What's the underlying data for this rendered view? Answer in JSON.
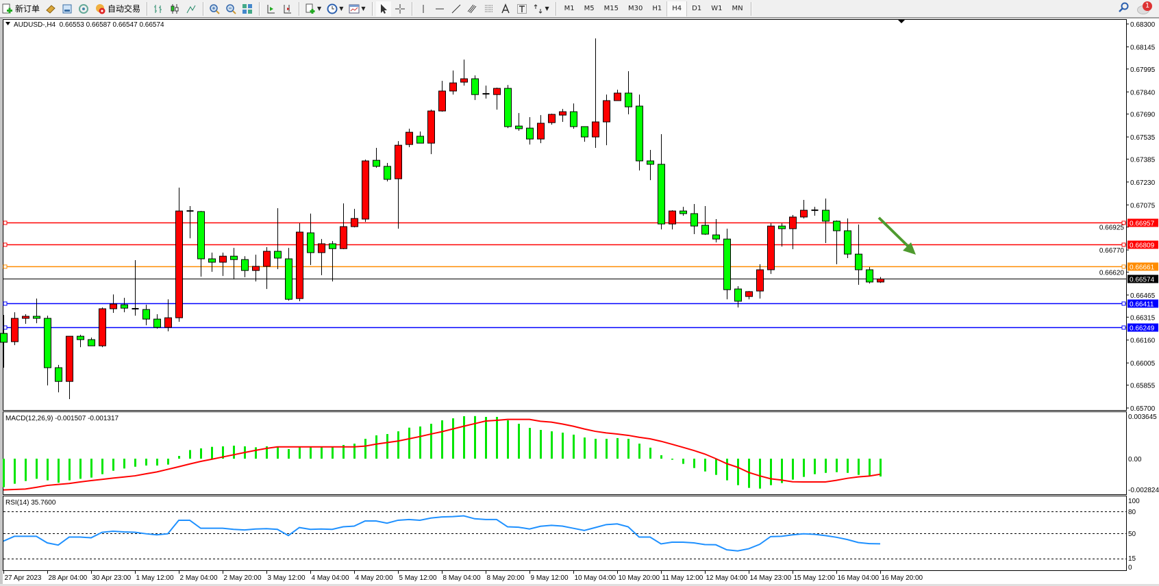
{
  "toolbar": {
    "new_order_label": "新订单",
    "auto_trade_label": "自动交易",
    "timeframes": [
      "M1",
      "M5",
      "M15",
      "M30",
      "H1",
      "H4",
      "D1",
      "W1",
      "MN"
    ],
    "active_timeframe": "H4",
    "notification_count": "1"
  },
  "chart": {
    "symbol_header": "AUDUSD-,H4  0.66553 0.66587 0.66547 0.66574",
    "macd_header": "MACD(12,26,9) -0.001507 -0.001317",
    "rsi_header": "RSI(14) 35.7600",
    "up_color": "#ff0000",
    "down_color": "#00ff00",
    "price_axis_labels": [
      "0.68300",
      "0.68145",
      "0.67995",
      "0.67840",
      "0.67690",
      "0.67535",
      "0.67385",
      "0.67230",
      "0.67075",
      "0.66925",
      "0.66770",
      "0.66620",
      "0.66465",
      "0.66315",
      "0.66160",
      "0.66005",
      "0.65855",
      "0.65700"
    ],
    "horizontal_lines": [
      {
        "price": "0.66957",
        "color": "#ff0000"
      },
      {
        "price": "0.66809",
        "color": "#ff0000"
      },
      {
        "price": "0.66661",
        "color": "#ff8c00"
      },
      {
        "price": "0.66411",
        "color": "#0000ff"
      },
      {
        "price": "0.66249",
        "color": "#0000ff"
      }
    ],
    "current_price": "0.66574",
    "macd_axis_labels": [
      "0.003645",
      "0.00",
      "-0.002824"
    ],
    "rsi_axis_labels": [
      "100",
      "80",
      "50",
      "15",
      "0"
    ],
    "rsi_levels": [
      80,
      50,
      15
    ],
    "time_labels": [
      "27 Apr 2023",
      "28 Apr 04:00",
      "30 Apr 23:00",
      "1 May 12:00",
      "2 May 04:00",
      "2 May 20:00",
      "3 May 12:00",
      "4 May 04:00",
      "4 May 20:00",
      "5 May 12:00",
      "8 May 04:00",
      "8 May 20:00",
      "9 May 12:00",
      "10 May 04:00",
      "10 May 20:00",
      "11 May 12:00",
      "12 May 04:00",
      "14 May 23:00",
      "15 May 12:00",
      "16 May 04:00",
      "16 May 20:00"
    ],
    "arrow_color": "#4e9a2e",
    "arrow_direction": "down-right"
  },
  "chart_data": [
    {
      "type": "candlestick",
      "title": "AUDUSD-,H4",
      "ylim": [
        0.657,
        0.683
      ],
      "ohlc": [
        [
          0.66205,
          0.6633,
          0.65973,
          0.66145
        ],
        [
          0.66149,
          0.66348,
          0.66126,
          0.66307
        ],
        [
          0.66307,
          0.66335,
          0.6627,
          0.66321
        ],
        [
          0.66321,
          0.66441,
          0.66274,
          0.66307
        ],
        [
          0.66307,
          0.66325,
          0.65853,
          0.65973
        ],
        [
          0.65973,
          0.65992,
          0.65806,
          0.6588
        ],
        [
          0.6588,
          0.66186,
          0.6576,
          0.66186
        ],
        [
          0.66186,
          0.66196,
          0.66112,
          0.66163
        ],
        [
          0.66163,
          0.66177,
          0.66121,
          0.66121
        ],
        [
          0.66121,
          0.66381,
          0.66112,
          0.66372
        ],
        [
          0.66372,
          0.66469,
          0.66344,
          0.66404
        ],
        [
          0.66399,
          0.66446,
          0.66348,
          0.66376
        ],
        [
          0.66372,
          0.66701,
          0.66325,
          0.66367
        ],
        [
          0.66367,
          0.66399,
          0.6626,
          0.66302
        ],
        [
          0.66302,
          0.66335,
          0.66237,
          0.66246
        ],
        [
          0.66246,
          0.66436,
          0.66219,
          0.66311
        ],
        [
          0.66311,
          0.67192,
          0.66284,
          0.67034
        ],
        [
          0.67034,
          0.67067,
          0.66849,
          0.6703
        ],
        [
          0.6703,
          0.67034,
          0.66589,
          0.6671
        ],
        [
          0.6671,
          0.66752,
          0.66622,
          0.66687
        ],
        [
          0.66687,
          0.66752,
          0.66594,
          0.66728
        ],
        [
          0.66728,
          0.66784,
          0.66571,
          0.66705
        ],
        [
          0.66705,
          0.66728,
          0.66585,
          0.66631
        ],
        [
          0.66631,
          0.66738,
          0.66557,
          0.66659
        ],
        [
          0.66659,
          0.66789,
          0.66506,
          0.66761
        ],
        [
          0.66761,
          0.67053,
          0.6664,
          0.66715
        ],
        [
          0.6671,
          0.66784,
          0.66427,
          0.66436
        ],
        [
          0.66441,
          0.66951,
          0.66423,
          0.66891
        ],
        [
          0.66886,
          0.67016,
          0.66668,
          0.66752
        ],
        [
          0.66752,
          0.66844,
          0.66599,
          0.66812
        ],
        [
          0.66812,
          0.6683,
          0.66557,
          0.66779
        ],
        [
          0.66779,
          0.67085,
          0.66775,
          0.66928
        ],
        [
          0.66928,
          0.67048,
          0.66923,
          0.66983
        ],
        [
          0.66979,
          0.67382,
          0.6696,
          0.67373
        ],
        [
          0.67377,
          0.67461,
          0.67326,
          0.67336
        ],
        [
          0.67336,
          0.67359,
          0.67234,
          0.67248
        ],
        [
          0.67252,
          0.67507,
          0.66914,
          0.67479
        ],
        [
          0.67484,
          0.67591,
          0.67466,
          0.67567
        ],
        [
          0.6754,
          0.67572,
          0.67493,
          0.67493
        ],
        [
          0.67493,
          0.6772,
          0.67419,
          0.67711
        ],
        [
          0.67711,
          0.67915,
          0.67706,
          0.67846
        ],
        [
          0.67846,
          0.67985,
          0.67822,
          0.67901
        ],
        [
          0.67906,
          0.68059,
          0.67883,
          0.67929
        ],
        [
          0.67929,
          0.67952,
          0.67785,
          0.67822
        ],
        [
          0.67827,
          0.67883,
          0.67795,
          0.67825
        ],
        [
          0.67822,
          0.67869,
          0.6772,
          0.67864
        ],
        [
          0.67864,
          0.67887,
          0.67595,
          0.67605
        ],
        [
          0.67609,
          0.67697,
          0.67577,
          0.67591
        ],
        [
          0.67595,
          0.67669,
          0.67484,
          0.67521
        ],
        [
          0.67521,
          0.67683,
          0.67493,
          0.67628
        ],
        [
          0.67632,
          0.67693,
          0.67618,
          0.67688
        ],
        [
          0.67683,
          0.67725,
          0.67637,
          0.67706
        ],
        [
          0.67706,
          0.67762,
          0.67591,
          0.67605
        ],
        [
          0.67605,
          0.67607,
          0.67503,
          0.67535
        ],
        [
          0.67535,
          0.68202,
          0.67461,
          0.67637
        ],
        [
          0.67637,
          0.67822,
          0.67479,
          0.67781
        ],
        [
          0.67781,
          0.67855,
          0.67781,
          0.67832
        ],
        [
          0.67832,
          0.6798,
          0.67688,
          0.67739
        ],
        [
          0.67744,
          0.67822,
          0.67308,
          0.67373
        ],
        [
          0.67373,
          0.67447,
          0.67243,
          0.6735
        ],
        [
          0.6735,
          0.67554,
          0.66909,
          0.66946
        ],
        [
          0.66946,
          0.67039,
          0.66909,
          0.67034
        ],
        [
          0.67034,
          0.67062,
          0.67002,
          0.67016
        ],
        [
          0.67016,
          0.67081,
          0.66877,
          0.66932
        ],
        [
          0.66937,
          0.67067,
          0.66872,
          0.66877
        ],
        [
          0.66872,
          0.66979,
          0.66821,
          0.66844
        ],
        [
          0.66844,
          0.66914,
          0.66436,
          0.66501
        ],
        [
          0.66506,
          0.66525,
          0.66381,
          0.66423
        ],
        [
          0.66455,
          0.66492,
          0.66436,
          0.66488
        ],
        [
          0.66492,
          0.66673,
          0.66441,
          0.66636
        ],
        [
          0.66636,
          0.66951,
          0.66608,
          0.66932
        ],
        [
          0.66932,
          0.66951,
          0.66793,
          0.66914
        ],
        [
          0.66914,
          0.67007,
          0.66775,
          0.66993
        ],
        [
          0.66993,
          0.67109,
          0.66983,
          0.67039
        ],
        [
          0.67039,
          0.67062,
          0.67002,
          0.67037
        ],
        [
          0.67039,
          0.67118,
          0.66817,
          0.66965
        ],
        [
          0.66965,
          0.6697,
          0.66673,
          0.669
        ],
        [
          0.669,
          0.66983,
          0.66715,
          0.66742
        ],
        [
          0.66742,
          0.66942,
          0.66534,
          0.66636
        ],
        [
          0.66636,
          0.66654,
          0.66543,
          0.66553
        ],
        [
          0.66553,
          0.66587,
          0.66547,
          0.66574
        ]
      ]
    },
    {
      "type": "bar+line",
      "title": "MACD(12,26,9)",
      "ylim": [
        -0.002824,
        0.003645
      ],
      "histogram": [
        -0.00241,
        -0.00212,
        -0.00189,
        -0.0017,
        -0.00183,
        -0.00203,
        -0.00183,
        -0.0017,
        -0.0016,
        -0.00131,
        -0.00102,
        -0.00083,
        -0.00068,
        -0.00058,
        -0.00058,
        -0.0005,
        0.00023,
        0.00073,
        0.00087,
        0.001,
        0.00104,
        0.0011,
        0.00104,
        0.00096,
        0.00104,
        0.00104,
        0.00081,
        0.00096,
        0.00096,
        0.00096,
        0.00096,
        0.00116,
        0.00127,
        0.00168,
        0.00197,
        0.00208,
        0.00231,
        0.00262,
        0.00272,
        0.00295,
        0.00324,
        0.00341,
        0.00359,
        0.0036,
        0.00353,
        0.00353,
        0.00324,
        0.00295,
        0.0026,
        0.00243,
        0.00231,
        0.0022,
        0.00203,
        0.00179,
        0.00168,
        0.00168,
        0.00174,
        0.00168,
        0.00127,
        0.00093,
        0.00029,
        -5e-05,
        -0.00044,
        -0.00079,
        -0.00108,
        -0.00137,
        -0.00183,
        -0.00224,
        -0.00247,
        -0.00253,
        -0.00224,
        -0.00206,
        -0.00177,
        -0.00154,
        -0.00131,
        -0.0012,
        -0.00114,
        -0.0012,
        -0.00137,
        -0.00143,
        -0.001507
      ],
      "signal": [
        -0.00264,
        -0.0026,
        -0.00257,
        -0.00242,
        -0.00226,
        -0.00218,
        -0.0021,
        -0.00197,
        -0.00185,
        -0.00175,
        -0.00164,
        -0.00155,
        -0.00145,
        -0.00128,
        -0.00112,
        -0.0009,
        -0.00068,
        -0.00045,
        -0.00023,
        -5e-05,
        0.00014,
        0.00033,
        0.00052,
        0.0007,
        0.00087,
        0.001,
        0.001,
        0.001,
        0.001,
        0.001,
        0.001,
        0.001,
        0.001,
        0.00106,
        0.00123,
        0.00136,
        0.00149,
        0.00168,
        0.00187,
        0.00208,
        0.00228,
        0.00251,
        0.00274,
        0.00296,
        0.00318,
        0.00324,
        0.00332,
        0.00332,
        0.00332,
        0.00316,
        0.00309,
        0.00293,
        0.00274,
        0.00251,
        0.00231,
        0.00218,
        0.00208,
        0.00197,
        0.00181,
        0.00168,
        0.00147,
        0.00122,
        0.00096,
        0.00069,
        0.00039,
        0.0,
        -0.00042,
        -0.00073,
        -0.00116,
        -0.00145,
        -0.0017,
        -0.00181,
        -0.00195,
        -0.00197,
        -0.00197,
        -0.00197,
        -0.00183,
        -0.00166,
        -0.00154,
        -0.00147,
        -0.001317
      ]
    },
    {
      "type": "line",
      "title": "RSI(14)",
      "ylim": [
        0,
        100
      ],
      "values": [
        39.4,
        46,
        46,
        46,
        37,
        34,
        45,
        45,
        44,
        51.5,
        53,
        52,
        51.5,
        49.5,
        48,
        49.5,
        68,
        68,
        57,
        57,
        57,
        55.5,
        54.7,
        56,
        56.5,
        55.5,
        47,
        58,
        55.5,
        56,
        55.5,
        59,
        60,
        67,
        67,
        64,
        68,
        69,
        68,
        71,
        72.5,
        73,
        74,
        70,
        69,
        69,
        59,
        58.5,
        56,
        59.7,
        61,
        60,
        57,
        54,
        58,
        62,
        63,
        59,
        45,
        45,
        35.6,
        38,
        38,
        37,
        34.7,
        34.4,
        27.5,
        26,
        29,
        35,
        45.6,
        46,
        48,
        49.4,
        48.7,
        47,
        44.7,
        41.6,
        37.5,
        36,
        35.76
      ]
    }
  ]
}
